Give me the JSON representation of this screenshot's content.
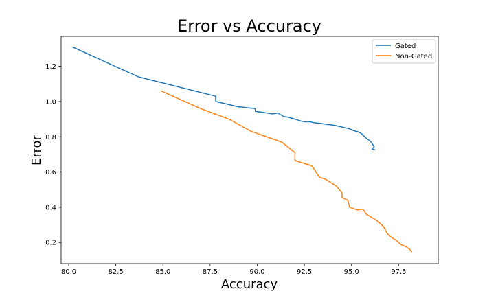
{
  "chart_data": {
    "type": "line",
    "title": "Error vs Accuracy",
    "xlabel": "Accuracy",
    "ylabel": "Error",
    "xlim": [
      79.6,
      99.6
    ],
    "ylim": [
      0.08,
      1.37
    ],
    "xticks": [
      80.0,
      82.5,
      85.0,
      87.5,
      90.0,
      92.5,
      95.0,
      97.5
    ],
    "xtick_labels": [
      "80.0",
      "82.5",
      "85.0",
      "87.5",
      "90.0",
      "92.5",
      "95.0",
      "97.5"
    ],
    "yticks": [
      0.2,
      0.4,
      0.6,
      0.8,
      1.0,
      1.2
    ],
    "ytick_labels": [
      "0.2",
      "0.4",
      "0.6",
      "0.8",
      "1.0",
      "1.2"
    ],
    "grid": false,
    "legend_position": "top-right",
    "series": [
      {
        "name": "Gated",
        "color": "#1f77b4",
        "points": [
          [
            80.2,
            1.31
          ],
          [
            83.7,
            1.14
          ],
          [
            87.8,
            1.03
          ],
          [
            87.8,
            1.0
          ],
          [
            89.0,
            0.97
          ],
          [
            89.9,
            0.96
          ],
          [
            89.9,
            0.945
          ],
          [
            90.8,
            0.93
          ],
          [
            91.1,
            0.935
          ],
          [
            91.4,
            0.915
          ],
          [
            91.7,
            0.91
          ],
          [
            92.0,
            0.9
          ],
          [
            92.3,
            0.89
          ],
          [
            92.5,
            0.885
          ],
          [
            92.8,
            0.885
          ],
          [
            93.0,
            0.88
          ],
          [
            93.4,
            0.875
          ],
          [
            93.7,
            0.87
          ],
          [
            94.1,
            0.865
          ],
          [
            94.5,
            0.855
          ],
          [
            94.9,
            0.845
          ],
          [
            95.1,
            0.835
          ],
          [
            95.3,
            0.83
          ],
          [
            95.5,
            0.82
          ],
          [
            95.7,
            0.8
          ],
          [
            95.8,
            0.79
          ],
          [
            96.0,
            0.775
          ],
          [
            96.1,
            0.76
          ],
          [
            96.2,
            0.745
          ],
          [
            96.1,
            0.73
          ],
          [
            96.25,
            0.725
          ]
        ]
      },
      {
        "name": "Non-Gated",
        "color": "#ff7f0e",
        "points": [
          [
            84.9,
            1.06
          ],
          [
            87.0,
            0.96
          ],
          [
            88.5,
            0.9
          ],
          [
            89.7,
            0.83
          ],
          [
            91.3,
            0.77
          ],
          [
            92.0,
            0.71
          ],
          [
            92.0,
            0.665
          ],
          [
            92.9,
            0.635
          ],
          [
            93.3,
            0.57
          ],
          [
            93.6,
            0.56
          ],
          [
            94.2,
            0.52
          ],
          [
            94.5,
            0.48
          ],
          [
            94.5,
            0.455
          ],
          [
            94.8,
            0.44
          ],
          [
            94.9,
            0.4
          ],
          [
            95.3,
            0.385
          ],
          [
            95.6,
            0.39
          ],
          [
            95.8,
            0.36
          ],
          [
            96.1,
            0.34
          ],
          [
            96.4,
            0.32
          ],
          [
            96.7,
            0.29
          ],
          [
            96.9,
            0.25
          ],
          [
            97.1,
            0.23
          ],
          [
            97.4,
            0.21
          ],
          [
            97.6,
            0.19
          ],
          [
            97.9,
            0.175
          ],
          [
            98.1,
            0.16
          ],
          [
            98.2,
            0.145
          ]
        ]
      }
    ]
  }
}
